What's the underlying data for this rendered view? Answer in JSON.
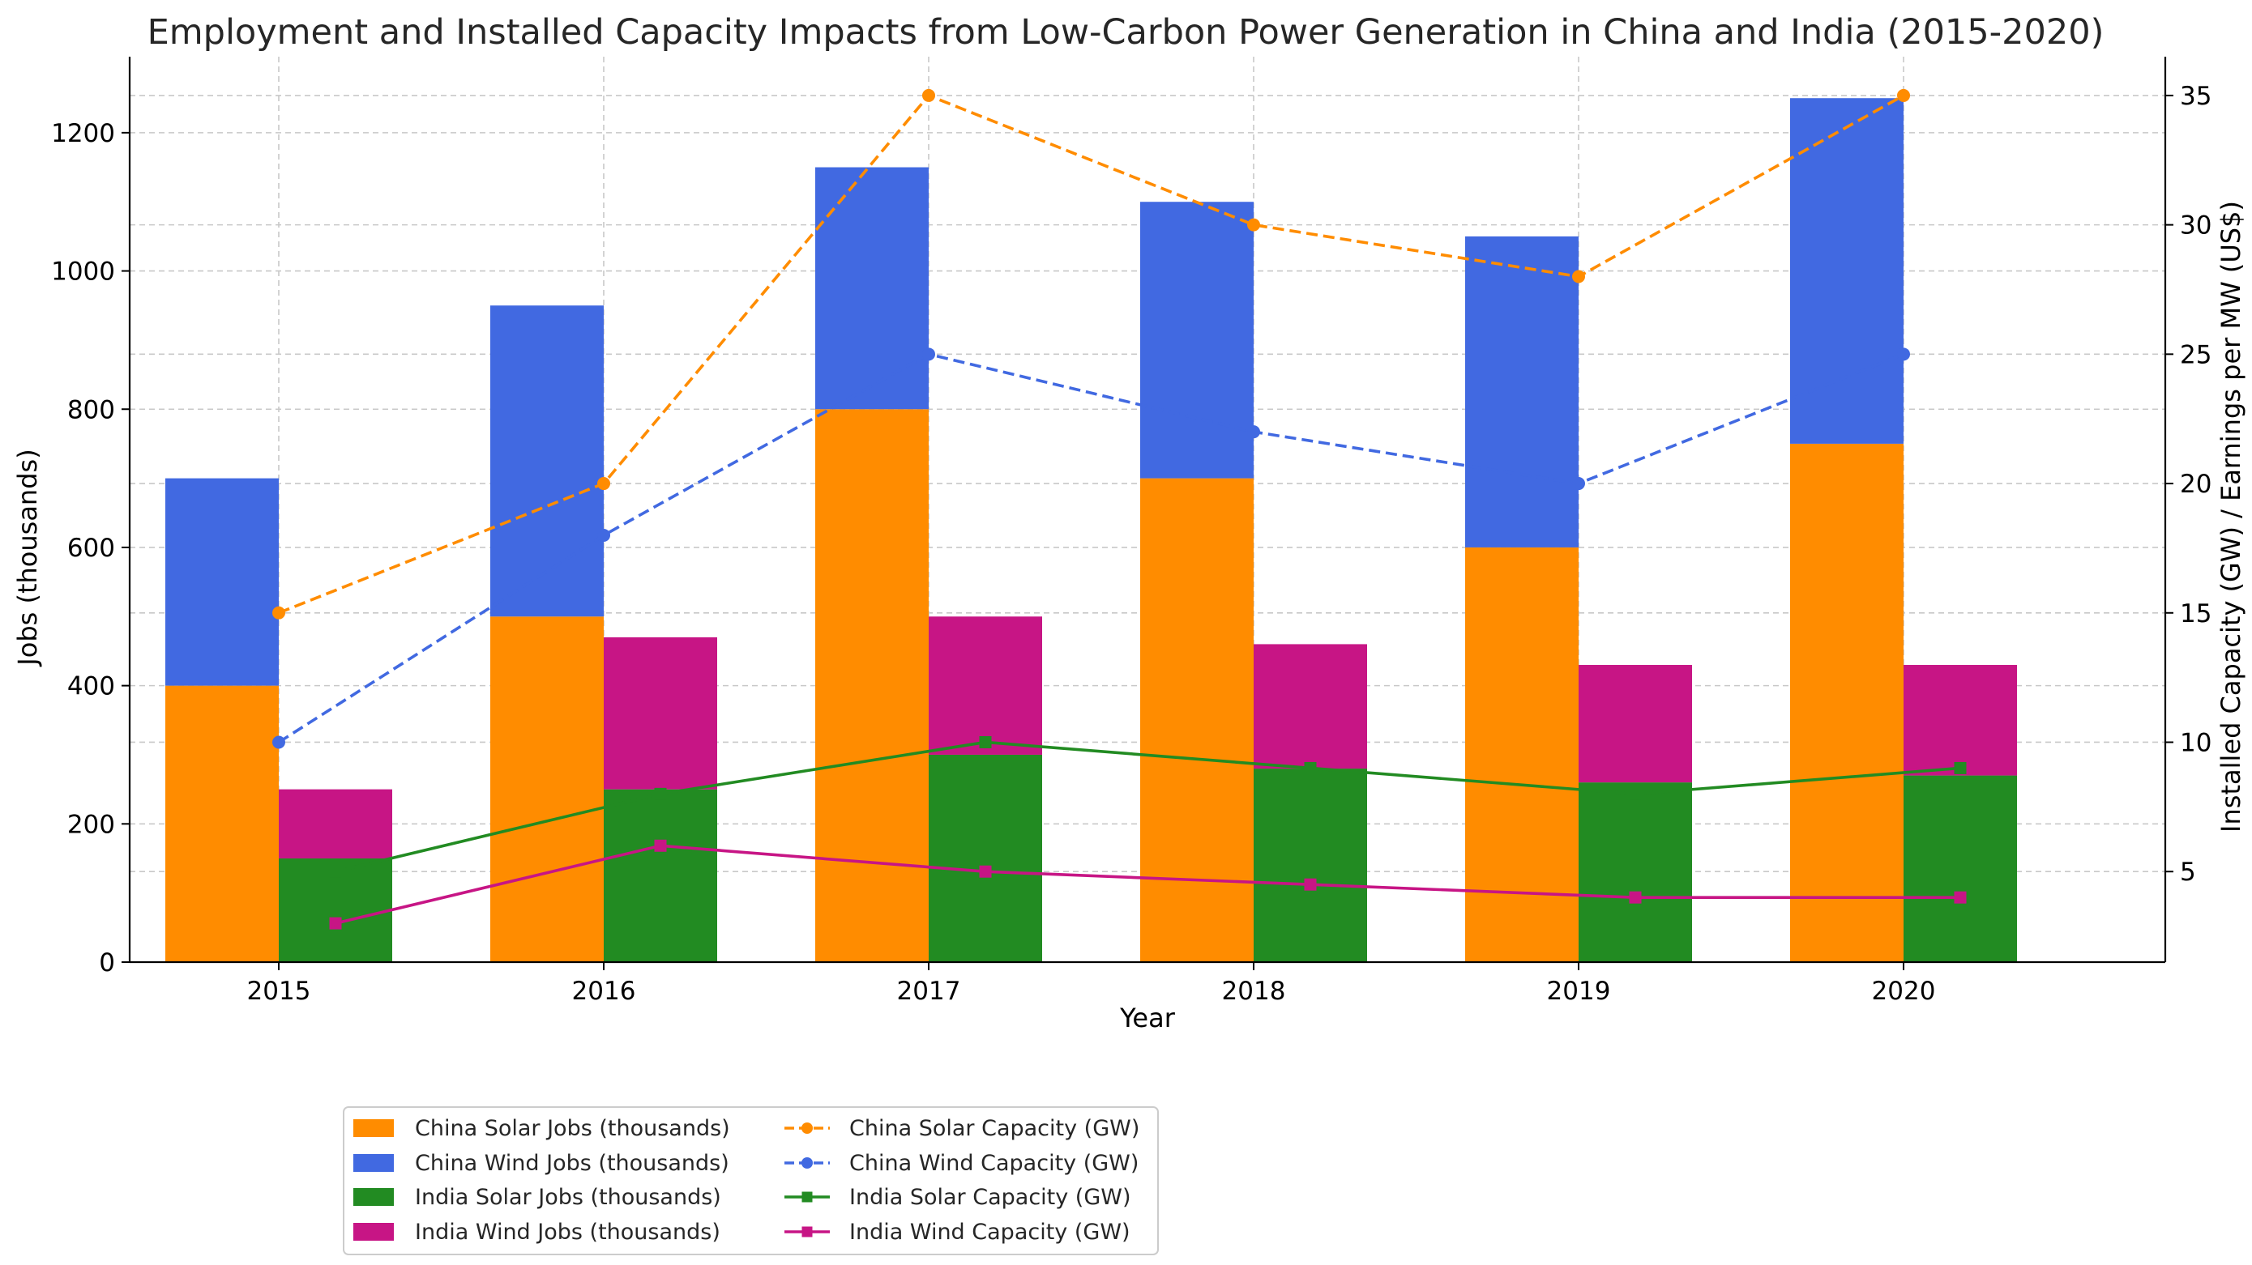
{
  "chart_data": {
    "type": "bar",
    "title": "Employment and Installed Capacity Impacts from Low-Carbon Power Generation in China and India (2015-2020)",
    "xlabel": "Year",
    "ylabel": "Jobs (thousands)",
    "y2label": "Installed Capacity (GW) / Earnings per MW (US$)",
    "categories": [
      "2015",
      "2016",
      "2017",
      "2018",
      "2019",
      "2020"
    ],
    "ylim": [
      0,
      1310
    ],
    "y2lim": [
      1.5,
      36.5
    ],
    "yticks": [
      0,
      200,
      400,
      600,
      800,
      1000,
      1200
    ],
    "y2ticks": [
      5,
      10,
      15,
      20,
      25,
      30,
      35
    ],
    "grid": true,
    "legend_position": "bottom",
    "bar_series": [
      {
        "name": "China Solar Jobs (thousands)",
        "group": "China",
        "stack_base": true,
        "color": "#ff8c00",
        "values": [
          400,
          500,
          800,
          700,
          600,
          750
        ]
      },
      {
        "name": "China Wind Jobs (thousands)",
        "group": "China",
        "stack_base": false,
        "color": "#4169e1",
        "values": [
          300,
          450,
          350,
          400,
          450,
          500
        ]
      },
      {
        "name": "India Solar Jobs (thousands)",
        "group": "India",
        "stack_base": true,
        "color": "#228b22",
        "values": [
          150,
          250,
          300,
          280,
          260,
          270
        ]
      },
      {
        "name": "India Wind Jobs (thousands)",
        "group": "India",
        "stack_base": false,
        "color": "#c71585",
        "values": [
          100,
          220,
          200,
          180,
          170,
          160
        ]
      }
    ],
    "line_series": [
      {
        "name": "China Solar Capacity (GW)",
        "color": "#ff8c00",
        "dashed": true,
        "marker": "circle",
        "position": "china",
        "values": [
          15,
          20,
          35,
          30,
          28,
          35
        ]
      },
      {
        "name": "China Wind Capacity (GW)",
        "color": "#4169e1",
        "dashed": true,
        "marker": "circle",
        "position": "china",
        "values": [
          10,
          18,
          25,
          22,
          20,
          25
        ]
      },
      {
        "name": "India Solar Capacity (GW)",
        "color": "#228b22",
        "dashed": false,
        "marker": "square",
        "position": "india",
        "values": [
          5,
          8,
          10,
          9,
          8,
          9
        ]
      },
      {
        "name": "India Wind Capacity (GW)",
        "color": "#c71585",
        "dashed": false,
        "marker": "square",
        "position": "india",
        "values": [
          3,
          6,
          5,
          4.5,
          4,
          4
        ]
      }
    ]
  }
}
